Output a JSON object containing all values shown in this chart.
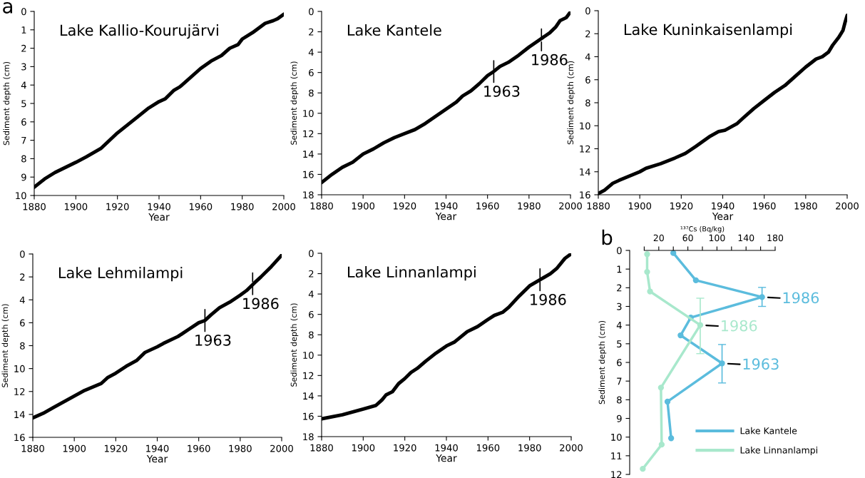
{
  "chart_data": [
    {
      "type": "line",
      "title": "Lake Kallio-Kourujärvi",
      "xlabel": "Year",
      "ylabel": "Sediment depth (cm)",
      "xlim": [
        1880,
        2000
      ],
      "xticks": [
        1880,
        1900,
        1920,
        1940,
        1960,
        1980,
        2000
      ],
      "ylim": [
        10,
        0
      ],
      "yticks": [
        0,
        1,
        2,
        3,
        4,
        5,
        6,
        7,
        8,
        9,
        10
      ],
      "grid": false,
      "marker": "none",
      "series": [
        {
          "color": "#000000",
          "x": [
            1880,
            1885,
            1890,
            1900,
            1905,
            1912,
            1920,
            1930,
            1935,
            1940,
            1943,
            1947,
            1950,
            1960,
            1965,
            1970,
            1974,
            1978,
            1980,
            1985,
            1988,
            1991,
            1995,
            1997,
            2000
          ],
          "values": [
            9.55,
            9.1,
            8.75,
            8.2,
            7.9,
            7.45,
            6.6,
            5.7,
            5.25,
            4.9,
            4.75,
            4.3,
            4.1,
            3.1,
            2.7,
            2.4,
            2.0,
            1.8,
            1.5,
            1.15,
            0.9,
            0.65,
            0.5,
            0.4,
            0.15
          ]
        }
      ],
      "annotations": [
        "a"
      ]
    },
    {
      "type": "line",
      "title": "Lake Kantele",
      "xlabel": "Year",
      "ylabel": "Sediment depth (cm)",
      "xlim": [
        1880,
        2000
      ],
      "xticks": [
        1880,
        1900,
        1920,
        1940,
        1960,
        1980,
        2000
      ],
      "ylim": [
        18,
        0
      ],
      "yticks": [
        0,
        2,
        4,
        6,
        8,
        10,
        12,
        14,
        16,
        18
      ],
      "grid": false,
      "marker": "none",
      "series": [
        {
          "color": "#000000",
          "x": [
            1880,
            1885,
            1890,
            1895,
            1900,
            1905,
            1910,
            1915,
            1920,
            1925,
            1930,
            1935,
            1940,
            1945,
            1948,
            1952,
            1956,
            1960,
            1963,
            1966,
            1970,
            1975,
            1980,
            1985,
            1990,
            1993,
            1995,
            1998,
            2000
          ],
          "values": [
            16.8,
            16.0,
            15.3,
            14.8,
            14.0,
            13.5,
            12.9,
            12.4,
            12.0,
            11.6,
            11.0,
            10.3,
            9.6,
            8.9,
            8.3,
            7.8,
            7.1,
            6.3,
            5.9,
            5.4,
            5.0,
            4.3,
            3.5,
            2.8,
            2.1,
            1.5,
            0.9,
            0.6,
            0.05
          ]
        }
      ],
      "annotations": [
        {
          "text": "1963",
          "x": 1963,
          "y": 5.9
        },
        {
          "text": "1986",
          "x": 1986,
          "y": 2.8
        }
      ]
    },
    {
      "type": "line",
      "title": "Lake Kuninkaisenlampi",
      "xlabel": "Year",
      "ylabel": "Sediment depth (cm)",
      "xlim": [
        1880,
        2000
      ],
      "xticks": [
        1880,
        1900,
        1920,
        1940,
        1960,
        1980,
        2000
      ],
      "ylim": [
        16,
        0
      ],
      "yticks": [
        0,
        2,
        4,
        6,
        8,
        10,
        12,
        14,
        16
      ],
      "grid": false,
      "marker": "none",
      "series": [
        {
          "color": "#000000",
          "x": [
            1880,
            1883,
            1887,
            1890,
            1900,
            1903,
            1910,
            1917,
            1922,
            1927,
            1934,
            1938,
            1941,
            1947,
            1950,
            1955,
            1960,
            1965,
            1970,
            1975,
            1980,
            1985,
            1988,
            1991,
            1993,
            1996,
            1998,
            1999,
            2000
          ],
          "values": [
            15.9,
            15.6,
            15.0,
            14.75,
            14.0,
            13.7,
            13.3,
            12.8,
            12.4,
            11.8,
            10.9,
            10.5,
            10.4,
            9.8,
            9.3,
            8.5,
            7.8,
            7.1,
            6.5,
            5.7,
            4.9,
            4.2,
            4.0,
            3.6,
            3.0,
            2.3,
            1.7,
            1.0,
            0.4
          ]
        }
      ]
    },
    {
      "type": "line",
      "title": "Lake Lehmilampi",
      "xlabel": "Year",
      "ylabel": "Sediment depth (cm)",
      "xlim": [
        1880,
        2000
      ],
      "xticks": [
        1880,
        1900,
        1920,
        1940,
        1960,
        1980,
        2000
      ],
      "ylim": [
        16,
        0
      ],
      "yticks": [
        0,
        2,
        4,
        6,
        8,
        10,
        12,
        14,
        16
      ],
      "grid": false,
      "marker": "none",
      "series": [
        {
          "color": "#000000",
          "x": [
            1880,
            1885,
            1890,
            1895,
            1900,
            1905,
            1913,
            1916,
            1920,
            1925,
            1930,
            1934,
            1940,
            1943,
            1950,
            1955,
            1960,
            1963,
            1966,
            1970,
            1975,
            1980,
            1983,
            1987,
            1990,
            1995,
            2000
          ],
          "values": [
            14.3,
            13.9,
            13.4,
            12.9,
            12.4,
            11.9,
            11.3,
            10.8,
            10.4,
            9.8,
            9.3,
            8.6,
            8.1,
            7.8,
            7.2,
            6.6,
            6.0,
            5.8,
            5.3,
            4.7,
            4.2,
            3.6,
            3.2,
            2.5,
            2.0,
            1.1,
            0.1
          ]
        }
      ],
      "annotations": [
        {
          "text": "1963",
          "x": 1963,
          "y": 5.8
        },
        {
          "text": "1986",
          "x": 1986,
          "y": 2.6
        }
      ]
    },
    {
      "type": "line",
      "title": "Lake Linnanlampi",
      "xlabel": "Year",
      "ylabel": "Sediment depth (cm)",
      "xlim": [
        1880,
        2000
      ],
      "xticks": [
        1880,
        1900,
        1920,
        1940,
        1960,
        1980,
        2000
      ],
      "ylim": [
        18,
        0
      ],
      "yticks": [
        0,
        2,
        4,
        6,
        8,
        10,
        12,
        14,
        16,
        18
      ],
      "grid": false,
      "marker": "none",
      "series": [
        {
          "color": "#000000",
          "x": [
            1880,
            1890,
            1900,
            1906,
            1909,
            1911,
            1914,
            1917,
            1920,
            1923,
            1926,
            1930,
            1935,
            1940,
            1944,
            1950,
            1955,
            1960,
            1963,
            1967,
            1970,
            1975,
            1980,
            1985,
            1990,
            1993,
            1997,
            2000
          ],
          "values": [
            16.25,
            15.85,
            15.3,
            14.95,
            14.4,
            13.9,
            13.6,
            12.8,
            12.3,
            11.7,
            11.3,
            10.6,
            9.8,
            9.1,
            8.7,
            7.7,
            7.2,
            6.5,
            6.1,
            5.8,
            5.3,
            4.2,
            3.2,
            2.6,
            2.0,
            1.5,
            0.5,
            0.05
          ]
        }
      ],
      "annotations": [
        {
          "text": "1986",
          "x": 1985,
          "y": 2.6
        }
      ]
    },
    {
      "type": "line",
      "xlabel": "¹³⁷Cs (Bq/kg)",
      "ylabel": "Sediment depth (cm)",
      "xlim": [
        -20,
        180
      ],
      "xticks": [
        {
          "value": 0,
          "label": null
        },
        20,
        {
          "value": 40,
          "label": null
        },
        60,
        {
          "value": 80,
          "label": null
        },
        100,
        {
          "value": 120,
          "label": null
        },
        140,
        {
          "value": 160,
          "label": null
        },
        180
      ],
      "ylim": [
        12,
        0
      ],
      "yticks": [
        0,
        1,
        2,
        3,
        4,
        5,
        6,
        7,
        8,
        9,
        10,
        11,
        12
      ],
      "grid": false,
      "marker": "circle",
      "legend": "bottom right",
      "series": [
        {
          "name": "Lake Kantele",
          "color": "#5bbcdd",
          "x": [
            40,
            71,
            162,
            64,
            50,
            107,
            32,
            37
          ],
          "values": [
            0.14,
            1.6,
            2.5,
            3.6,
            4.55,
            6.05,
            8.1,
            10.06
          ],
          "errors": [
            null,
            null,
            [
              1.98,
              3.0
            ],
            null,
            null,
            [
              5.04,
              7.1
            ],
            null,
            null
          ]
        },
        {
          "name": "Lake Linnanlampi",
          "color": "#a8e8cc",
          "x": [
            4,
            4,
            8,
            77,
            23,
            24,
            -2
          ],
          "values": [
            0.2,
            1.15,
            2.2,
            4.0,
            7.35,
            10.4,
            11.7
          ],
          "errors": [
            null,
            null,
            null,
            [
              2.56,
              5.53
            ],
            null,
            null,
            null
          ]
        }
      ],
      "annotations": [
        "b",
        {
          "text": "1986",
          "x": 162,
          "y": 2.5
        },
        {
          "text": "1986",
          "x": 77,
          "y": 4.0
        },
        {
          "text": "1963",
          "x": 107,
          "y": 6.05
        }
      ]
    }
  ]
}
